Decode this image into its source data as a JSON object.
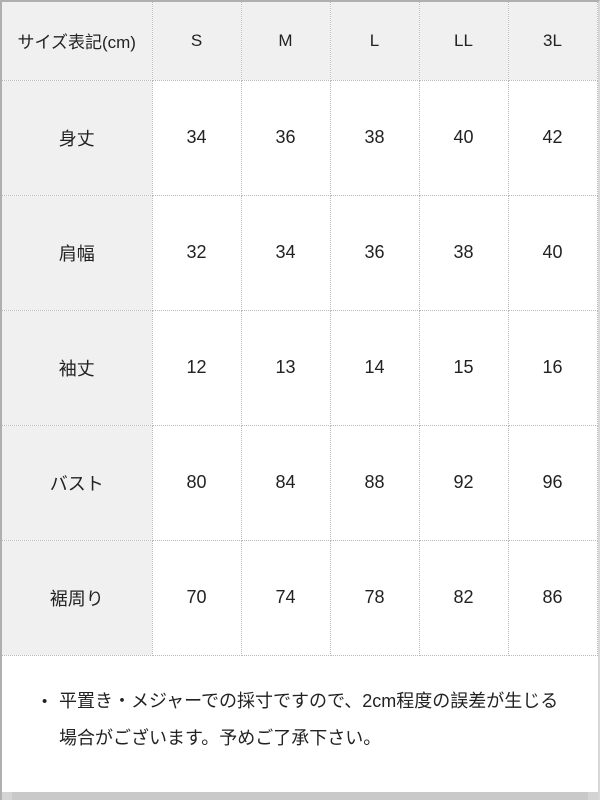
{
  "table": {
    "corner_header": "サイズ表記(cm)",
    "size_headers": [
      "S",
      "M",
      "L",
      "LL",
      "3L"
    ],
    "rows": [
      {
        "label": "身丈",
        "values": [
          "34",
          "36",
          "38",
          "40",
          "42"
        ]
      },
      {
        "label": "肩幅",
        "values": [
          "32",
          "34",
          "36",
          "38",
          "40"
        ]
      },
      {
        "label": "袖丈",
        "values": [
          "12",
          "13",
          "14",
          "15",
          "16"
        ]
      },
      {
        "label": "バスト",
        "values": [
          "80",
          "84",
          "88",
          "92",
          "96"
        ]
      },
      {
        "label": "裾周り",
        "values": [
          "70",
          "74",
          "78",
          "82",
          "86"
        ]
      }
    ]
  },
  "note": {
    "bullet": "•",
    "lines": [
      "平置き・メジャーでの採寸ですので、2cm程度の誤差が生じる",
      "場合がございます。予めご了承下さい。"
    ]
  },
  "colors": {
    "header_bg": "#f0f0f0",
    "dotted_border": "#b9b9b9",
    "frame_border": "#afafaf",
    "scrollbar_track": "#c9c9c9",
    "text": "#222222"
  }
}
